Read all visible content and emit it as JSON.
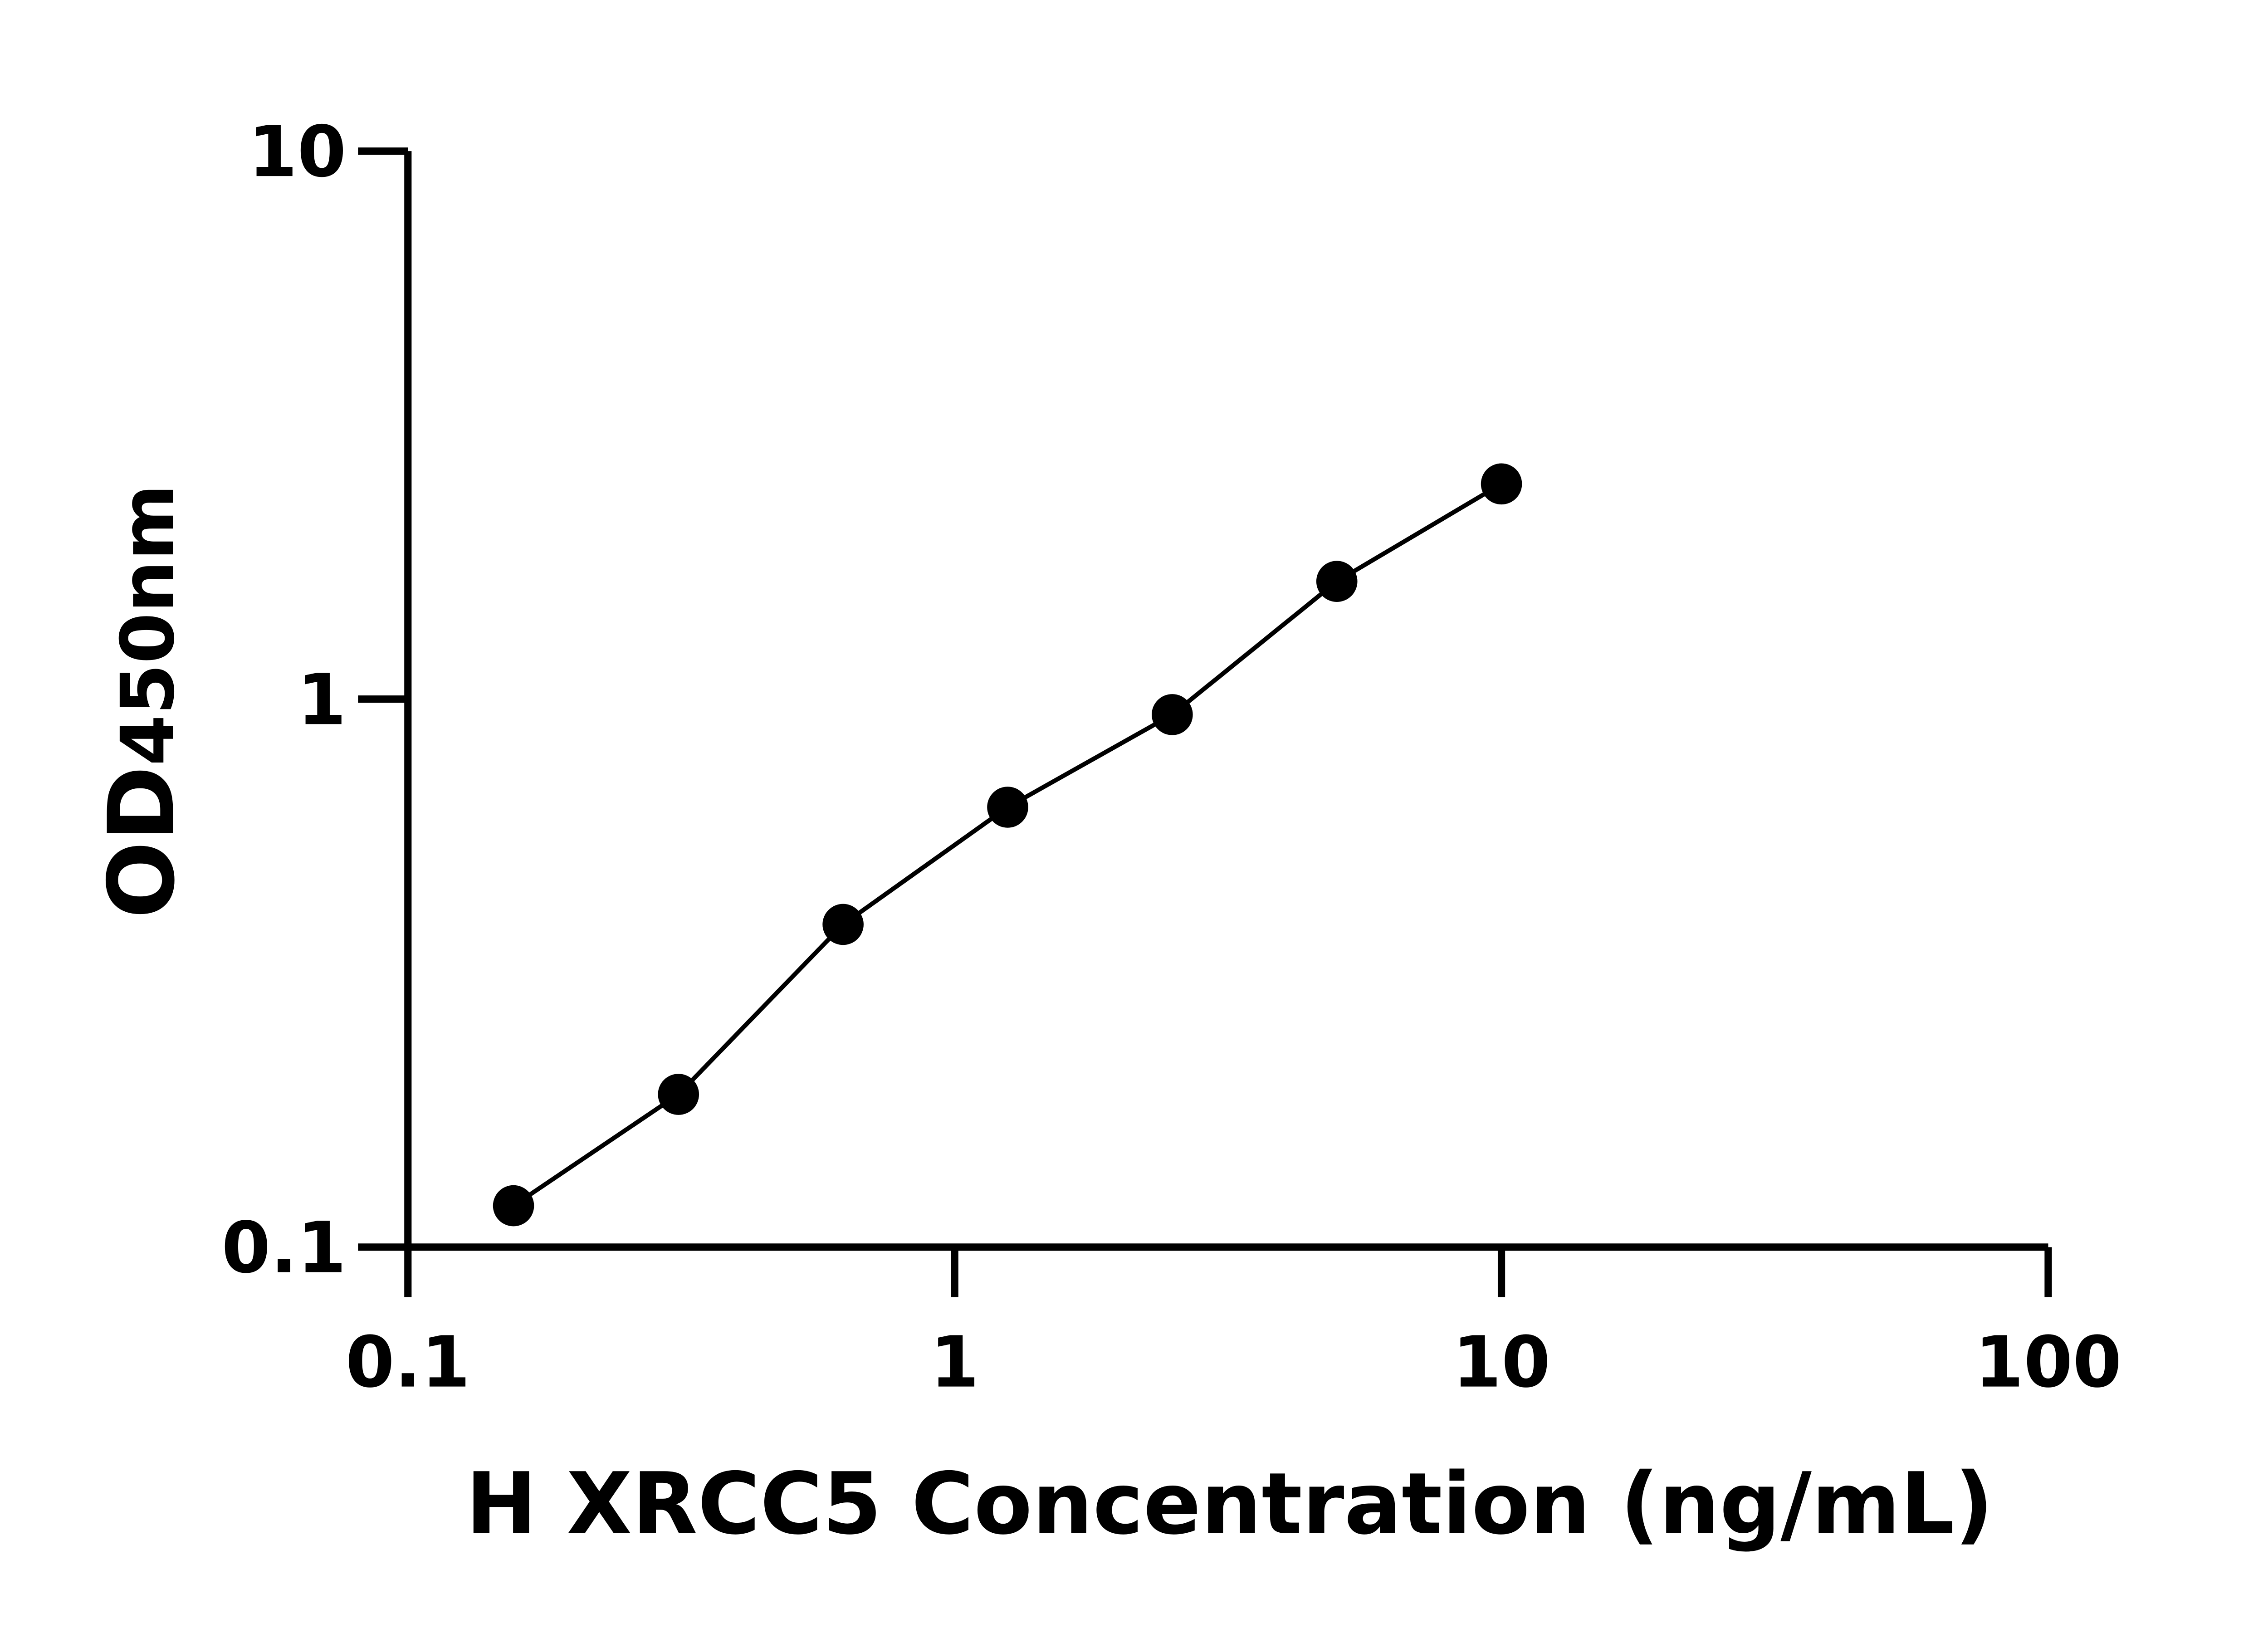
{
  "chart_data": {
    "type": "scatter",
    "title": "",
    "xlabel": "H XRCC5 Concentration (ng/mL)",
    "ylabel_main": "OD",
    "ylabel_sub": "450nm",
    "x_scale": "log",
    "y_scale": "log",
    "xlim": [
      0.1,
      100
    ],
    "ylim": [
      0.1,
      10
    ],
    "x_ticks": [
      0.1,
      1,
      10,
      100
    ],
    "x_tick_labels": [
      "0.1",
      "1",
      "10",
      "100"
    ],
    "y_ticks": [
      0.1,
      1,
      10
    ],
    "y_tick_labels": [
      "0.1",
      "1",
      "10"
    ],
    "grid": false,
    "fit_line": true,
    "color": "#000000",
    "points": [
      {
        "x": 0.156,
        "y": 0.119
      },
      {
        "x": 0.3125,
        "y": 0.19
      },
      {
        "x": 0.625,
        "y": 0.388
      },
      {
        "x": 1.25,
        "y": 0.635
      },
      {
        "x": 2.5,
        "y": 0.937
      },
      {
        "x": 5,
        "y": 1.64
      },
      {
        "x": 10,
        "y": 2.47
      }
    ]
  }
}
